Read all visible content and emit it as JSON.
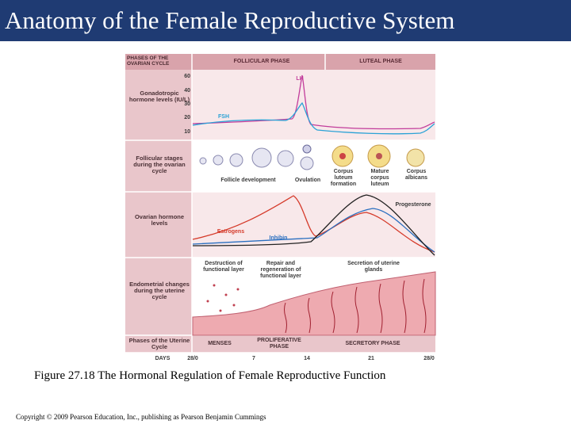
{
  "header": {
    "title": "Anatomy of the Female Reproductive System"
  },
  "figure": {
    "columns": [
      "PHASES OF THE OVARIAN CYCLE",
      "FOLLICULAR PHASE",
      "LUTEAL PHASE"
    ],
    "rows": [
      "Gonadotropic hormone levels (IU/L)",
      "Follicular stages during the ovarian cycle",
      "Ovarian hormone levels",
      "Endometrial changes during the uterine cycle",
      "Phases of the Uterine Cycle"
    ],
    "gonadotropic": {
      "ticks": [
        "60",
        "40",
        "30",
        "20",
        "10"
      ],
      "labels": [
        "LH",
        "FSH"
      ]
    },
    "follicular": [
      "Follicle development",
      "Ovulation",
      "Corpus luteum formation",
      "Mature corpus luteum",
      "Corpus albicans"
    ],
    "ovarian": [
      "Estrogens",
      "Inhibin",
      "Progesterone"
    ],
    "endometrial": [
      "Destruction of functional layer",
      "Repair and regeneration of functional layer",
      "Secretion of uterine glands"
    ],
    "uterine": [
      "MENSES",
      "PROLIFERATIVE PHASE",
      "SECRETORY PHASE"
    ],
    "days": {
      "label": "DAYS",
      "values": [
        "28/0",
        "7",
        "14",
        "21",
        "28/0"
      ]
    }
  },
  "caption": "Figure 27.18 The Hormonal Regulation of Female Reproductive Function",
  "copyright": "Copyright © 2009 Pearson Education, Inc., publishing as Pearson Benjamin Cummings"
}
